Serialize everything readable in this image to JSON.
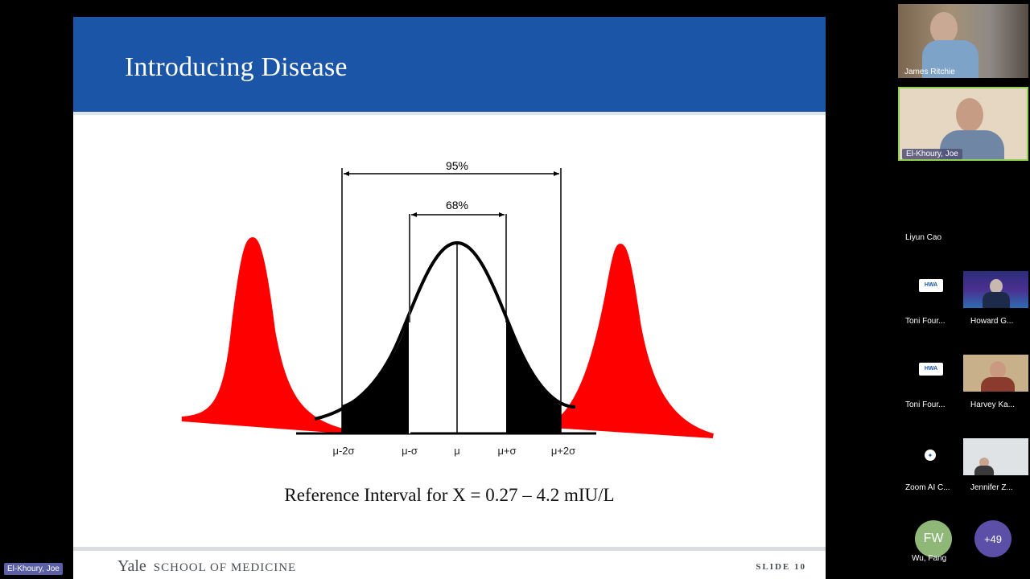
{
  "slide": {
    "title": "Introducing Disease",
    "caption": "Reference Interval for X = 0.27 – 4.2 mIU/L",
    "footer_logo_main": "Yale",
    "footer_logo_sub": "SCHOOL OF MEDICINE",
    "footer_slide_number": "SLIDE 10",
    "diagram": {
      "outer_interval_label": "95%",
      "inner_interval_label": "68%",
      "tick_labels": [
        "μ-2σ",
        "μ-σ",
        "μ",
        "μ+σ",
        "μ+2σ"
      ]
    }
  },
  "gallery": {
    "participants": [
      {
        "name": "James Ritchie"
      },
      {
        "name": "El-Khoury, Joe"
      },
      {
        "name": "Liyun Cao"
      },
      {
        "name": "Toni Four..."
      },
      {
        "name": "Howard G..."
      },
      {
        "name": "Toni Four..."
      },
      {
        "name": "Harvey Ka..."
      },
      {
        "name": "Zoom AI C..."
      },
      {
        "name": "Jennifer Z..."
      },
      {
        "name": "Wu, Fang",
        "initials": "FW"
      }
    ],
    "more_count": "+49",
    "hwa_logo_text": "HWA",
    "colors": {
      "avatar_green": "#8fb878",
      "more_badge": "#5b4fa8"
    }
  },
  "active_speaker_label": "El-Khoury, Joe",
  "colors": {
    "slide_header": "#1a55a8",
    "disease_curve": "#ff0000",
    "normal_curve": "#000000"
  }
}
